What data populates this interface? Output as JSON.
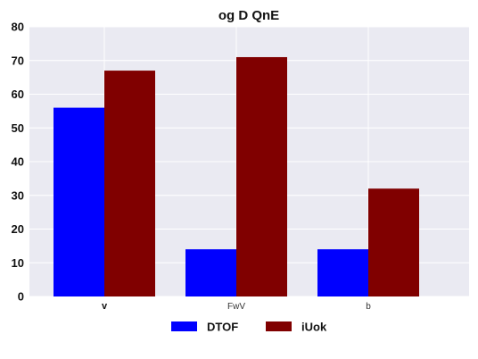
{
  "chart_data": {
    "type": "bar",
    "title": "og D QnE",
    "categories": [
      "v",
      "FwV",
      "b"
    ],
    "series": [
      {
        "name": "DTOF",
        "color": "#0000ff",
        "values": [
          56,
          14,
          14
        ]
      },
      {
        "name": "iUok",
        "color": "#800000",
        "values": [
          67,
          71,
          32
        ]
      }
    ],
    "ylim": [
      0,
      80
    ],
    "yticks": [
      0,
      10,
      20,
      30,
      40,
      50,
      60,
      70,
      80
    ],
    "xlabel": "",
    "ylabel": "",
    "grid": true,
    "legend_position": "bottom-center",
    "plot_background": "#eaeaf2",
    "grid_color": "#ffffff"
  }
}
